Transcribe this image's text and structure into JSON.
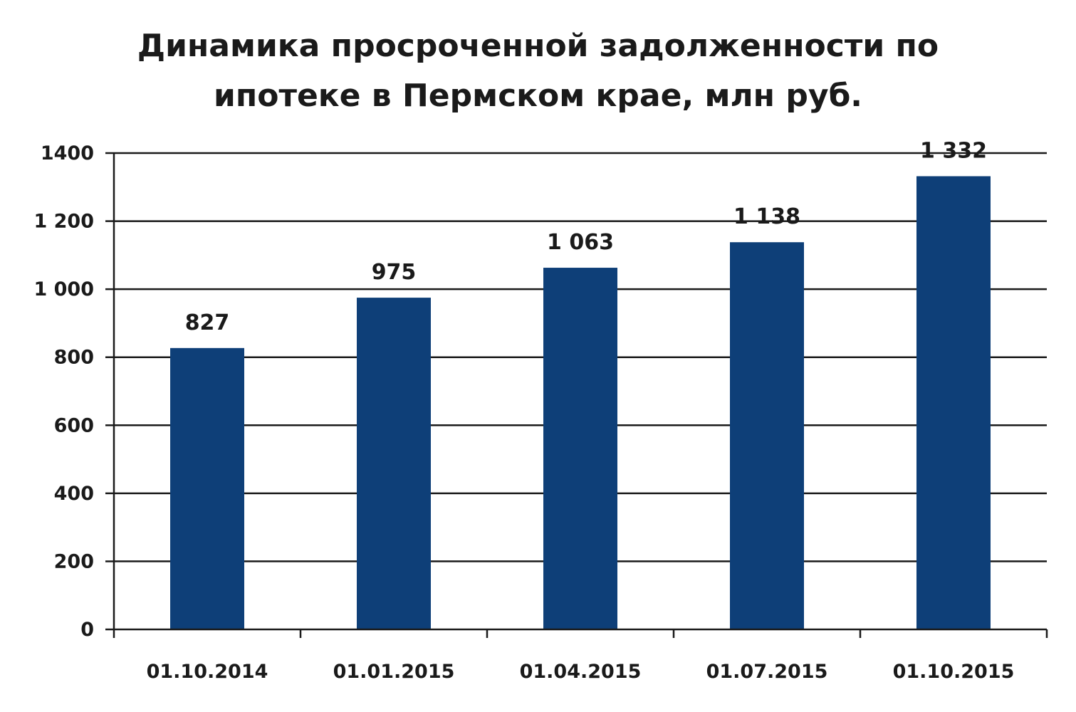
{
  "chart_data": {
    "type": "bar",
    "title_lines": [
      "Динамика просроченной  задолженности по",
      "ипотеке в Пермском крае, млн руб."
    ],
    "categories": [
      "01.10.2014",
      "01.01.2015",
      "01.04.2015",
      "01.07.2015",
      "01.10.2015"
    ],
    "values": [
      827,
      975,
      1063,
      1138,
      1332
    ],
    "value_labels": [
      "827",
      "975",
      "1 063",
      "1 138",
      "1 332"
    ],
    "ylim": [
      0,
      1400
    ],
    "yticks": [
      0,
      200,
      400,
      600,
      800,
      1000,
      1200,
      1400
    ],
    "ytick_labels": [
      "0",
      "200",
      "400",
      "600",
      "800",
      "1 000",
      "1 200",
      "1400"
    ],
    "xlabel": "",
    "ylabel": "",
    "grid": true,
    "legend": "none",
    "bar_color": "#0e3f78"
  }
}
